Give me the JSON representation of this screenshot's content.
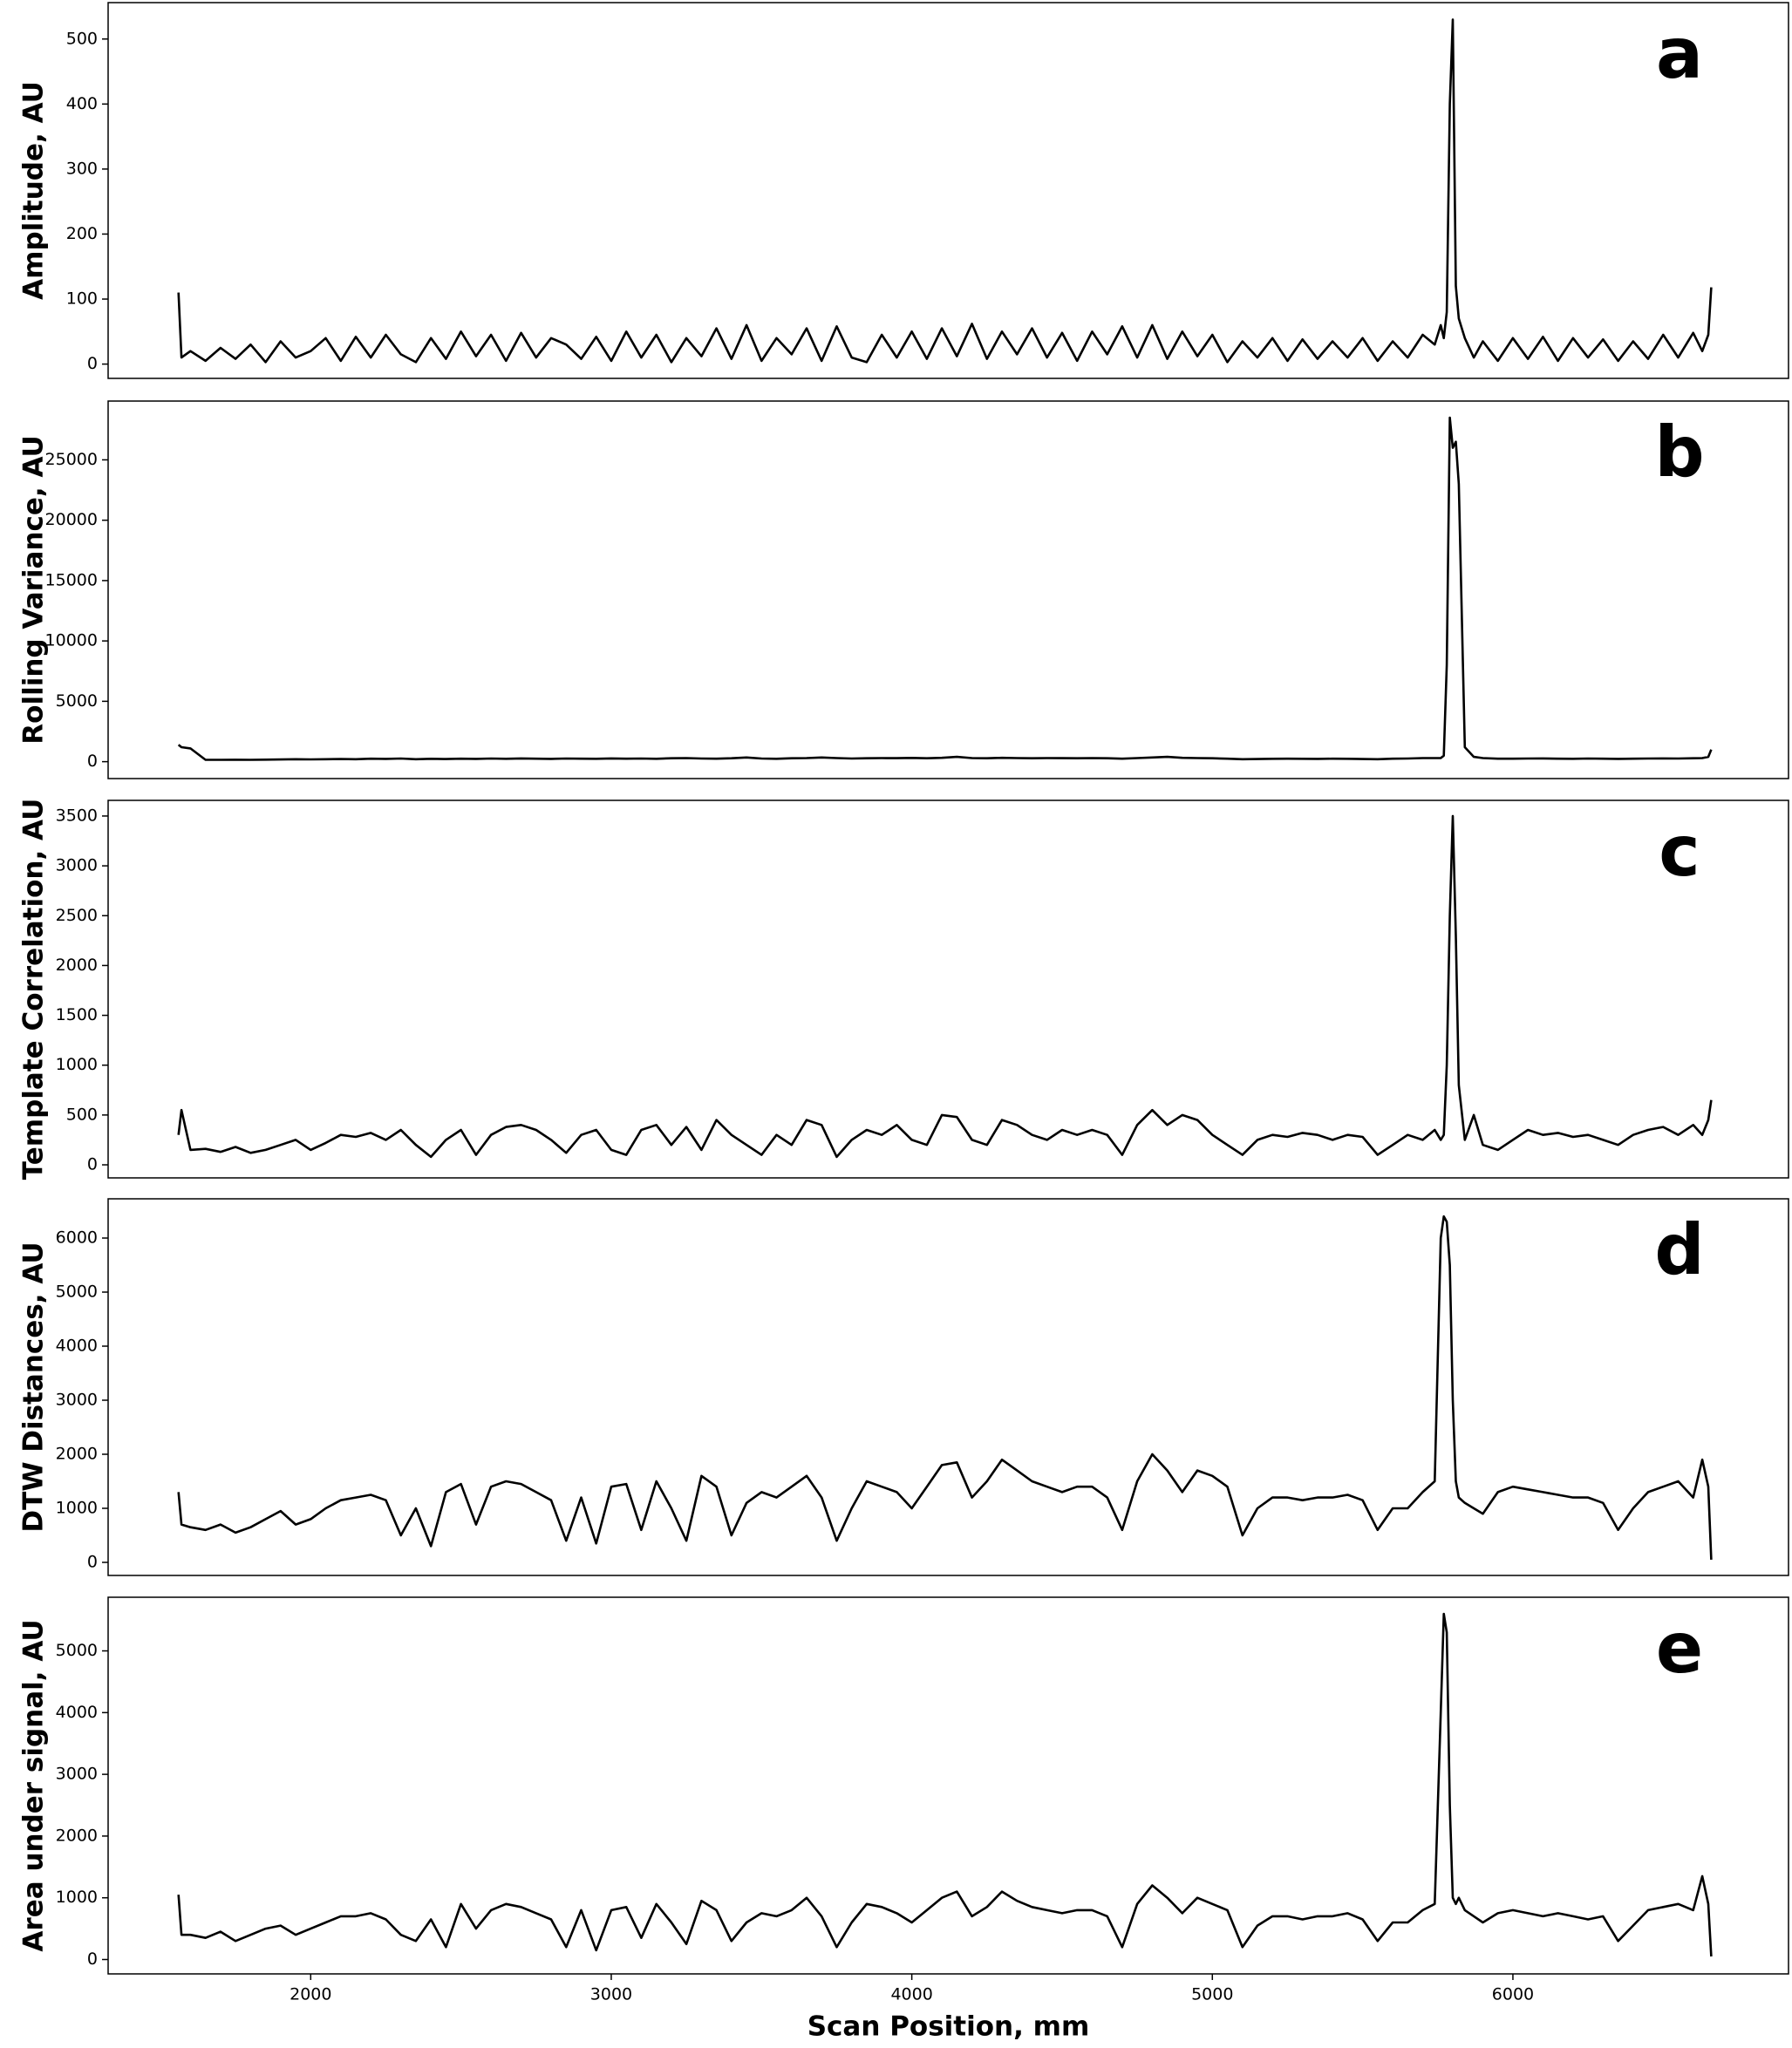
{
  "chart_data": [
    {
      "type": "line",
      "label": "a",
      "ylabel": "Amplitude, AU",
      "color": "#000000",
      "x": [
        1560,
        1570,
        1600,
        1650,
        1700,
        1750,
        1800,
        1850,
        1900,
        1950,
        2000,
        2050,
        2100,
        2150,
        2200,
        2250,
        2300,
        2350,
        2400,
        2450,
        2500,
        2550,
        2600,
        2650,
        2700,
        2750,
        2800,
        2850,
        2900,
        2950,
        3000,
        3050,
        3100,
        3150,
        3200,
        3250,
        3300,
        3350,
        3400,
        3450,
        3500,
        3550,
        3600,
        3650,
        3700,
        3750,
        3800,
        3850,
        3900,
        3950,
        4000,
        4050,
        4100,
        4150,
        4200,
        4250,
        4300,
        4350,
        4400,
        4450,
        4500,
        4550,
        4600,
        4650,
        4700,
        4750,
        4800,
        4850,
        4900,
        4950,
        5000,
        5050,
        5100,
        5150,
        5200,
        5250,
        5300,
        5350,
        5400,
        5450,
        5500,
        5550,
        5600,
        5650,
        5700,
        5740,
        5760,
        5770,
        5780,
        5790,
        5800,
        5810,
        5820,
        5840,
        5870,
        5900,
        5950,
        6000,
        6050,
        6100,
        6150,
        6200,
        6250,
        6300,
        6350,
        6400,
        6450,
        6500,
        6550,
        6600,
        6630,
        6650,
        6660
      ],
      "values": [
        110,
        10,
        20,
        5,
        25,
        8,
        30,
        3,
        35,
        10,
        20,
        40,
        5,
        42,
        10,
        45,
        15,
        3,
        40,
        8,
        50,
        12,
        45,
        5,
        48,
        10,
        40,
        30,
        8,
        42,
        5,
        50,
        10,
        45,
        3,
        40,
        12,
        55,
        8,
        60,
        5,
        40,
        15,
        55,
        5,
        58,
        10,
        3,
        45,
        10,
        50,
        8,
        55,
        12,
        62,
        8,
        50,
        15,
        55,
        10,
        48,
        5,
        50,
        15,
        58,
        10,
        60,
        8,
        50,
        12,
        45,
        3,
        35,
        10,
        40,
        5,
        38,
        8,
        35,
        10,
        40,
        5,
        35,
        10,
        45,
        30,
        60,
        40,
        80,
        400,
        530,
        120,
        70,
        40,
        10,
        35,
        5,
        40,
        8,
        42,
        5,
        40,
        10,
        38,
        5,
        35,
        8,
        45,
        10,
        48,
        20,
        45,
        118
      ],
      "xlim": [
        1326,
        6917
      ],
      "ylim": [
        -22,
        556
      ],
      "yticks": [
        0,
        100,
        200,
        300,
        400,
        500
      ]
    },
    {
      "type": "line",
      "label": "b",
      "ylabel": "Rolling Variance, AU",
      "color": "#000000",
      "x": [
        1560,
        1570,
        1600,
        1650,
        1700,
        1750,
        1800,
        1850,
        1900,
        1950,
        2000,
        2050,
        2100,
        2150,
        2200,
        2250,
        2300,
        2350,
        2400,
        2450,
        2500,
        2550,
        2600,
        2650,
        2700,
        2750,
        2800,
        2850,
        2900,
        2950,
        3000,
        3050,
        3100,
        3150,
        3200,
        3250,
        3300,
        3350,
        3400,
        3450,
        3500,
        3550,
        3600,
        3650,
        3700,
        3750,
        3800,
        3850,
        3900,
        3950,
        4000,
        4050,
        4100,
        4150,
        4200,
        4250,
        4300,
        4350,
        4400,
        4450,
        4500,
        4550,
        4600,
        4650,
        4700,
        4750,
        4800,
        4850,
        4900,
        4950,
        5000,
        5050,
        5100,
        5150,
        5200,
        5250,
        5300,
        5350,
        5400,
        5450,
        5500,
        5550,
        5600,
        5650,
        5700,
        5740,
        5760,
        5770,
        5780,
        5790,
        5800,
        5810,
        5820,
        5840,
        5870,
        5900,
        5950,
        6000,
        6050,
        6100,
        6150,
        6200,
        6250,
        6300,
        6350,
        6400,
        6450,
        6500,
        6550,
        6600,
        6630,
        6650,
        6660
      ],
      "values": [
        1400,
        1200,
        1100,
        150,
        150,
        160,
        150,
        170,
        180,
        200,
        190,
        200,
        220,
        200,
        250,
        230,
        260,
        200,
        240,
        220,
        250,
        230,
        260,
        240,
        270,
        250,
        230,
        260,
        250,
        240,
        270,
        250,
        260,
        240,
        280,
        300,
        260,
        250,
        280,
        350,
        260,
        240,
        280,
        300,
        350,
        300,
        260,
        280,
        300,
        290,
        310,
        280,
        320,
        400,
        300,
        280,
        320,
        300,
        280,
        300,
        290,
        280,
        300,
        280,
        250,
        300,
        350,
        400,
        320,
        300,
        280,
        250,
        200,
        220,
        240,
        250,
        240,
        230,
        250,
        240,
        220,
        200,
        250,
        260,
        300,
        300,
        300,
        500,
        8000,
        28500,
        26000,
        26500,
        23000,
        1200,
        400,
        300,
        250,
        250,
        260,
        270,
        250,
        240,
        260,
        250,
        230,
        250,
        260,
        270,
        260,
        280,
        300,
        400,
        1000
      ],
      "xlim": [
        1326,
        6917
      ],
      "ylim": [
        -1400,
        29870
      ],
      "yticks": [
        0,
        5000,
        10000,
        15000,
        20000,
        25000
      ]
    },
    {
      "type": "line",
      "label": "c",
      "ylabel": "Template Correlation, AU",
      "color": "#000000",
      "x": [
        1560,
        1570,
        1600,
        1650,
        1700,
        1750,
        1800,
        1850,
        1900,
        1950,
        2000,
        2050,
        2100,
        2150,
        2200,
        2250,
        2300,
        2350,
        2400,
        2450,
        2500,
        2550,
        2600,
        2650,
        2700,
        2750,
        2800,
        2850,
        2900,
        2950,
        3000,
        3050,
        3100,
        3150,
        3200,
        3250,
        3300,
        3350,
        3400,
        3450,
        3500,
        3550,
        3600,
        3650,
        3700,
        3750,
        3800,
        3850,
        3900,
        3950,
        4000,
        4050,
        4100,
        4150,
        4200,
        4250,
        4300,
        4350,
        4400,
        4450,
        4500,
        4550,
        4600,
        4650,
        4700,
        4750,
        4800,
        4850,
        4900,
        4950,
        5000,
        5050,
        5100,
        5150,
        5200,
        5250,
        5300,
        5350,
        5400,
        5450,
        5500,
        5550,
        5600,
        5650,
        5700,
        5740,
        5760,
        5770,
        5780,
        5790,
        5800,
        5810,
        5820,
        5840,
        5870,
        5900,
        5950,
        6000,
        6050,
        6100,
        6150,
        6200,
        6250,
        6300,
        6350,
        6400,
        6450,
        6500,
        6550,
        6600,
        6630,
        6650,
        6660
      ],
      "values": [
        300,
        550,
        150,
        160,
        130,
        180,
        120,
        150,
        200,
        250,
        150,
        220,
        300,
        280,
        320,
        250,
        350,
        200,
        80,
        250,
        350,
        100,
        300,
        380,
        400,
        350,
        250,
        120,
        300,
        350,
        150,
        100,
        350,
        400,
        200,
        380,
        150,
        450,
        300,
        200,
        100,
        300,
        200,
        450,
        400,
        80,
        250,
        350,
        300,
        400,
        250,
        200,
        500,
        480,
        250,
        200,
        450,
        400,
        300,
        250,
        350,
        300,
        350,
        300,
        100,
        400,
        550,
        400,
        500,
        450,
        300,
        200,
        100,
        250,
        300,
        280,
        320,
        300,
        250,
        300,
        280,
        100,
        200,
        300,
        250,
        350,
        250,
        300,
        1000,
        2500,
        3500,
        2300,
        800,
        250,
        500,
        200,
        150,
        250,
        350,
        300,
        320,
        280,
        300,
        250,
        200,
        300,
        350,
        380,
        300,
        400,
        300,
        450,
        650
      ],
      "xlim": [
        1326,
        6917
      ],
      "ylim": [
        -131,
        3657
      ],
      "yticks": [
        0,
        500,
        1000,
        1500,
        2000,
        2500,
        3000,
        3500
      ]
    },
    {
      "type": "line",
      "label": "d",
      "ylabel": "DTW Distances, AU",
      "color": "#000000",
      "x": [
        1560,
        1570,
        1600,
        1650,
        1700,
        1750,
        1800,
        1850,
        1900,
        1950,
        2000,
        2050,
        2100,
        2150,
        2200,
        2250,
        2300,
        2350,
        2400,
        2450,
        2500,
        2550,
        2600,
        2650,
        2700,
        2750,
        2800,
        2850,
        2900,
        2950,
        3000,
        3050,
        3100,
        3150,
        3200,
        3250,
        3300,
        3350,
        3400,
        3450,
        3500,
        3550,
        3600,
        3650,
        3700,
        3750,
        3800,
        3850,
        3900,
        3950,
        4000,
        4050,
        4100,
        4150,
        4200,
        4250,
        4300,
        4350,
        4400,
        4450,
        4500,
        4550,
        4600,
        4650,
        4700,
        4750,
        4800,
        4850,
        4900,
        4950,
        5000,
        5050,
        5100,
        5150,
        5200,
        5250,
        5300,
        5350,
        5400,
        5450,
        5500,
        5550,
        5600,
        5650,
        5700,
        5740,
        5760,
        5770,
        5780,
        5790,
        5800,
        5810,
        5820,
        5840,
        5870,
        5900,
        5950,
        6000,
        6050,
        6100,
        6150,
        6200,
        6250,
        6300,
        6350,
        6400,
        6450,
        6500,
        6550,
        6600,
        6630,
        6650,
        6660
      ],
      "values": [
        1300,
        700,
        650,
        600,
        700,
        550,
        650,
        800,
        950,
        700,
        800,
        1000,
        1150,
        1200,
        1250,
        1150,
        500,
        1000,
        300,
        1300,
        1450,
        700,
        1400,
        1500,
        1450,
        1300,
        1150,
        400,
        1200,
        350,
        1400,
        1450,
        600,
        1500,
        1000,
        400,
        1600,
        1400,
        500,
        1100,
        1300,
        1200,
        1400,
        1600,
        1200,
        400,
        1000,
        1500,
        1400,
        1300,
        1000,
        1400,
        1800,
        1850,
        1200,
        1500,
        1900,
        1700,
        1500,
        1400,
        1300,
        1400,
        1400,
        1200,
        600,
        1500,
        2000,
        1700,
        1300,
        1700,
        1600,
        1400,
        500,
        1000,
        1200,
        1200,
        1150,
        1200,
        1200,
        1250,
        1150,
        600,
        1000,
        1000,
        1300,
        1500,
        6000,
        6400,
        6300,
        5500,
        3000,
        1500,
        1200,
        1100,
        1000,
        900,
        1300,
        1400,
        1350,
        1300,
        1250,
        1200,
        1200,
        1100,
        600,
        1000,
        1300,
        1400,
        1500,
        1200,
        1900,
        1400,
        50
      ],
      "xlim": [
        1326,
        6917
      ],
      "ylim": [
        -242,
        6726
      ],
      "yticks": [
        0,
        1000,
        2000,
        3000,
        4000,
        5000,
        6000
      ]
    },
    {
      "type": "line",
      "label": "e",
      "ylabel": "Area under signal, AU",
      "xlabel": "Scan Position, mm",
      "color": "#000000",
      "x": [
        1560,
        1570,
        1600,
        1650,
        1700,
        1750,
        1800,
        1850,
        1900,
        1950,
        2000,
        2050,
        2100,
        2150,
        2200,
        2250,
        2300,
        2350,
        2400,
        2450,
        2500,
        2550,
        2600,
        2650,
        2700,
        2750,
        2800,
        2850,
        2900,
        2950,
        3000,
        3050,
        3100,
        3150,
        3200,
        3250,
        3300,
        3350,
        3400,
        3450,
        3500,
        3550,
        3600,
        3650,
        3700,
        3750,
        3800,
        3850,
        3900,
        3950,
        4000,
        4050,
        4100,
        4150,
        4200,
        4250,
        4300,
        4350,
        4400,
        4450,
        4500,
        4550,
        4600,
        4650,
        4700,
        4750,
        4800,
        4850,
        4900,
        4950,
        5000,
        5050,
        5100,
        5150,
        5200,
        5250,
        5300,
        5350,
        5400,
        5450,
        5500,
        5550,
        5600,
        5650,
        5700,
        5740,
        5760,
        5770,
        5780,
        5790,
        5800,
        5810,
        5820,
        5840,
        5870,
        5900,
        5950,
        6000,
        6050,
        6100,
        6150,
        6200,
        6250,
        6300,
        6350,
        6400,
        6450,
        6500,
        6550,
        6600,
        6630,
        6650,
        6660
      ],
      "values": [
        1050,
        400,
        400,
        350,
        450,
        300,
        400,
        500,
        550,
        400,
        500,
        600,
        700,
        700,
        750,
        650,
        400,
        300,
        650,
        200,
        900,
        500,
        800,
        900,
        850,
        750,
        650,
        200,
        800,
        150,
        800,
        850,
        350,
        900,
        600,
        250,
        950,
        800,
        300,
        600,
        750,
        700,
        800,
        1000,
        700,
        200,
        600,
        900,
        850,
        750,
        600,
        800,
        1000,
        1100,
        700,
        850,
        1100,
        950,
        850,
        800,
        750,
        800,
        800,
        700,
        200,
        900,
        1200,
        1000,
        750,
        1000,
        900,
        800,
        200,
        550,
        700,
        700,
        650,
        700,
        700,
        750,
        650,
        300,
        600,
        600,
        800,
        900,
        4000,
        5600,
        5300,
        2500,
        1000,
        900,
        1000,
        800,
        700,
        600,
        750,
        800,
        750,
        700,
        750,
        700,
        650,
        700,
        300,
        550,
        800,
        850,
        900,
        800,
        1350,
        900,
        50
      ],
      "xlim": [
        1326,
        6917
      ],
      "ylim": [
        -233,
        5869
      ],
      "yticks": [
        0,
        1000,
        2000,
        3000,
        4000,
        5000
      ],
      "xticks": [
        2000,
        3000,
        4000,
        5000,
        6000
      ]
    }
  ]
}
